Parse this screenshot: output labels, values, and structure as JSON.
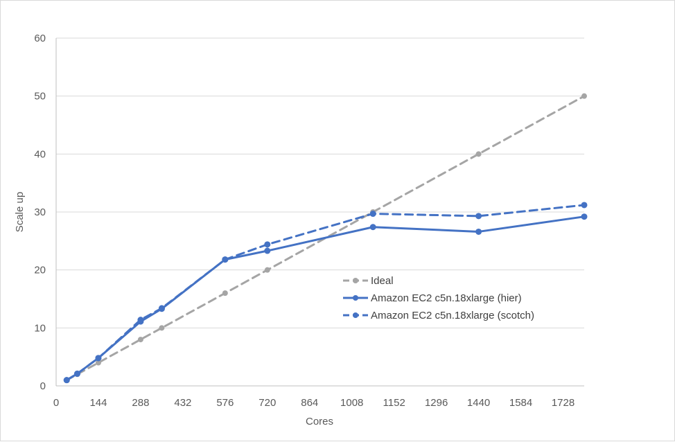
{
  "chart_data": {
    "type": "line",
    "title": "",
    "xlabel": "Cores",
    "ylabel": "Scale up",
    "xlim": [
      0,
      1800
    ],
    "ylim": [
      0,
      60
    ],
    "xticks": [
      "0",
      "144",
      "288",
      "432",
      "576",
      "720",
      "864",
      "1008",
      "1152",
      "1296",
      "1440",
      "1584",
      "1728"
    ],
    "yticks": [
      "0",
      "10",
      "20",
      "30",
      "40",
      "50",
      "60"
    ],
    "grid": "horizontal",
    "legend_position": "center-right",
    "series": [
      {
        "name": "Ideal",
        "color": "#a5a5a5",
        "dash": "dashed",
        "x": [
          36,
          72,
          144,
          288,
          360,
          576,
          720,
          1080,
          1440,
          1800
        ],
        "y": [
          1,
          2,
          4,
          8,
          10,
          16,
          20,
          30,
          40,
          50
        ]
      },
      {
        "name": "Amazon EC2 c5n.18xlarge (hier)",
        "color": "#4472c4",
        "dash": "solid",
        "x": [
          36,
          72,
          144,
          288,
          360,
          576,
          720,
          1080,
          1440,
          1800
        ],
        "y": [
          1,
          2.1,
          4.8,
          11.1,
          13.3,
          21.8,
          23.3,
          27.4,
          26.6,
          29.2
        ]
      },
      {
        "name": "Amazon EC2 c5n.18xlarge (scotch)",
        "color": "#4472c4",
        "dash": "dashed",
        "x": [
          36,
          72,
          144,
          288,
          360,
          576,
          720,
          1080,
          1440,
          1800
        ],
        "y": [
          1,
          2.1,
          4.8,
          11.4,
          13.4,
          21.8,
          24.4,
          29.7,
          29.3,
          31.2
        ]
      }
    ]
  }
}
